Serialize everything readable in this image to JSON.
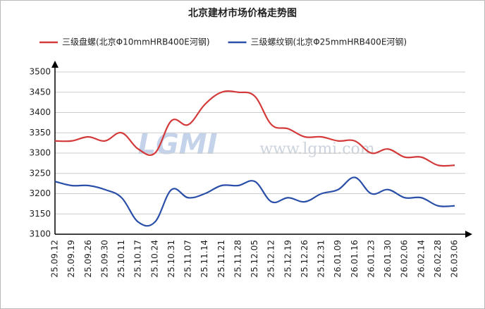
{
  "chart_data": {
    "type": "line",
    "title": "北京建材市场价格走势图",
    "watermark_logo": "LGMI",
    "watermark_url": "www.lgmi.com",
    "categories": [
      "25.09.12",
      "25.09.19",
      "25.09.26",
      "25.09.30",
      "25.10.11",
      "25.10.17",
      "25.10.24",
      "25.10.31",
      "25.11.07",
      "25.11.14",
      "25.11.21",
      "25.11.28",
      "25.12.05",
      "25.12.12",
      "25.12.19",
      "25.12.26",
      "25.12.31",
      "26.01.09",
      "26.01.16",
      "26.01.23",
      "26.01.30",
      "26.02.06",
      "26.02.14",
      "26.02.28",
      "26.03.06"
    ],
    "series": [
      {
        "name": "三级盘螺(北京Φ10mmHRB400E河钢)",
        "color": "#d43a3a",
        "values": [
          3330,
          3330,
          3340,
          3330,
          3350,
          3310,
          3300,
          3380,
          3370,
          3420,
          3450,
          3450,
          3440,
          3370,
          3360,
          3340,
          3340,
          3330,
          3330,
          3300,
          3310,
          3290,
          3290,
          3270,
          3270
        ]
      },
      {
        "name": "三级螺纹钢(北京Φ25mmHRB400E河钢)",
        "color": "#2a4fa8",
        "values": [
          3230,
          3220,
          3220,
          3210,
          3190,
          3130,
          3130,
          3210,
          3190,
          3200,
          3220,
          3220,
          3230,
          3180,
          3190,
          3180,
          3200,
          3210,
          3240,
          3200,
          3210,
          3190,
          3190,
          3170,
          3170
        ]
      }
    ],
    "ylim": [
      3100,
      3500
    ],
    "yticks": [
      3100,
      3150,
      3200,
      3250,
      3300,
      3350,
      3400,
      3450,
      3500
    ],
    "grid": true
  }
}
